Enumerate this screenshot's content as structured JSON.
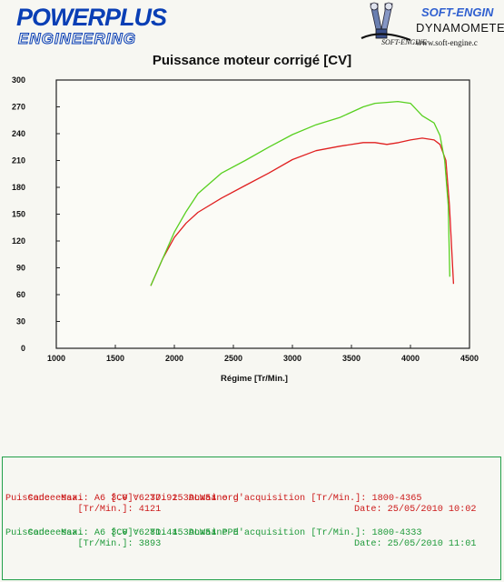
{
  "header": {
    "logo_line1": "POWERPLUS",
    "logo_line2": "ENGINEERING",
    "brand": "SOFT-ENGIN",
    "brand_mini": "SOFT-ENGINE",
    "brand_sub": "DYNAMOMETE",
    "brand_url": "www.soft-engine.c"
  },
  "colors": {
    "series1": "#e02020",
    "series2": "#58d020",
    "logo_blue": "#0a3fb5",
    "info_border": "#22a04a"
  },
  "chart_data": {
    "type": "line",
    "title": "Puissance moteur corrigé [CV]",
    "xlabel": "Régime [Tr/Min.]",
    "ylabel": "",
    "xlim": [
      1000,
      4500
    ],
    "ylim": [
      0,
      300
    ],
    "xticks": [
      "1000",
      "1500",
      "2000",
      "2500",
      "3000",
      "3500",
      "4000",
      "4500"
    ],
    "yticks": [
      "0",
      "30",
      "60",
      "90",
      "120",
      "150",
      "180",
      "210",
      "240",
      "270",
      "300"
    ],
    "grid": false,
    "series": [
      {
        "color": "#e02020",
        "x": [
          1800,
          1900,
          2000,
          2100,
          2200,
          2400,
          2600,
          2800,
          3000,
          3200,
          3400,
          3600,
          3700,
          3800,
          3900,
          4000,
          4100,
          4150,
          4200,
          4250,
          4300,
          4330,
          4365
        ],
        "y": [
          70,
          100,
          124,
          140,
          152,
          168,
          182,
          196,
          211,
          221,
          226,
          230,
          230,
          228,
          230,
          233,
          235,
          234,
          233,
          228,
          210,
          160,
          72
        ]
      },
      {
        "color": "#58d020",
        "x": [
          1800,
          1900,
          2000,
          2100,
          2200,
          2400,
          2600,
          2800,
          3000,
          3200,
          3400,
          3600,
          3700,
          3800,
          3893,
          4000,
          4100,
          4200,
          4250,
          4290,
          4320,
          4333
        ],
        "y": [
          70,
          100,
          130,
          153,
          173,
          196,
          210,
          225,
          239,
          250,
          258,
          270,
          274,
          275,
          276,
          274,
          260,
          252,
          238,
          210,
          160,
          80
        ]
      }
    ]
  },
  "info": {
    "lines": [
      {
        "label": "Code essai: A6 3.0 V6 TDi 153ALW54 org",
        "date": "Date: 25/05/2010 10:02"
      },
      {
        "label": "Puissance Max.     [CV]: 237.92  Domaine d'acquisition [Tr/Min.]: 1800-4365"
      },
      {
        "label": "             [Tr/Min.]: 4121"
      },
      {
        "label": "Code essai: A6 3.0 V6 TDi 153ALW54 PPE",
        "date": "Date: 25/05/2010 11:01"
      },
      {
        "label": "Puissance Max.     [CV]: 281.44  Domaine d'acquisition [Tr/Min.]: 1800-4333"
      },
      {
        "label": "             [Tr/Min.]: 3893"
      }
    ]
  }
}
